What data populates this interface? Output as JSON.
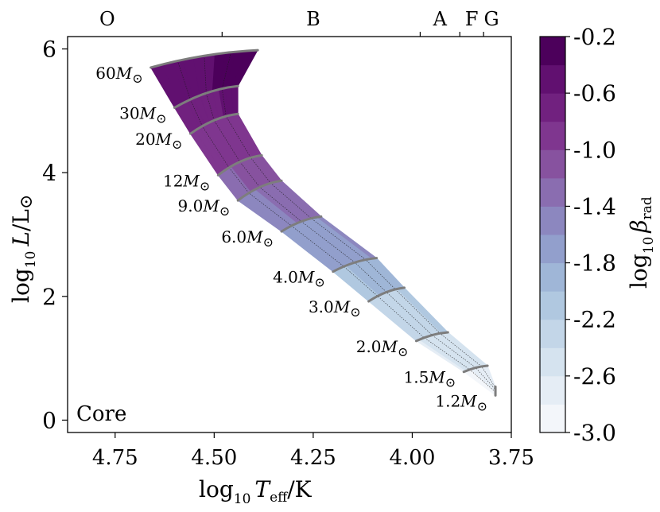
{
  "chart_data": {
    "type": "contour",
    "title": "",
    "panel_label": "Core",
    "xlabel": {
      "main": "log",
      "sub": "10",
      "sym": "T",
      "symsub": "eff",
      "unit": "/K"
    },
    "ylabel": {
      "main": "log",
      "sub": "10",
      "sym": "L",
      "unit": "/L",
      "sun": "⊙"
    },
    "xlim": [
      4.87,
      3.75
    ],
    "ylim": [
      -0.2,
      6.2
    ],
    "x_ticks": [
      4.75,
      4.5,
      4.25,
      4.0,
      3.75
    ],
    "x_tick_labels": [
      "4.75",
      "4.50",
      "4.25",
      "4.00",
      "3.75"
    ],
    "y_ticks": [
      0,
      2,
      4,
      6
    ],
    "y_tick_labels": [
      "0",
      "2",
      "4",
      "6"
    ],
    "spectral_classes": [
      {
        "label": "O",
        "x": 4.77
      },
      {
        "label": "B",
        "x": 4.25
      },
      {
        "label": "A",
        "x": 3.93
      },
      {
        "label": "F",
        "x": 3.85
      },
      {
        "label": "G",
        "x": 3.8
      }
    ],
    "spectral_boundaries": [
      4.48,
      3.98,
      3.88,
      3.82
    ],
    "colorbar": {
      "label": {
        "main": "log",
        "sub": "10",
        "sym": "β",
        "symsub": "rad"
      },
      "min": -3.0,
      "max": -0.2,
      "levels": [
        -3.0,
        -2.8,
        -2.6,
        -2.4,
        -2.2,
        -2.0,
        -1.8,
        -1.6,
        -1.4,
        -1.2,
        -1.0,
        -0.8,
        -0.6,
        -0.4,
        -0.2
      ],
      "tick_values": [
        -3.0,
        -2.6,
        -2.2,
        -1.8,
        -1.4,
        -1.0,
        -0.6,
        -0.2
      ],
      "tick_labels": [
        "-3.0",
        "-2.6",
        "-2.2",
        "-1.8",
        "-1.4",
        "-1.0",
        "-0.6",
        "-0.2"
      ],
      "colors": [
        "#f3f6fa",
        "#e5edf5",
        "#d5e3ef",
        "#c3d6e8",
        "#b0c8e0",
        "#9fb6d7",
        "#929fcc",
        "#8c87bf",
        "#8a6db0",
        "#87529f",
        "#7f368f",
        "#71217f",
        "#611070",
        "#4c005b"
      ]
    },
    "tracks": [
      {
        "mass": "60",
        "x_zams": 4.66,
        "x_end": 4.39,
        "logL": 5.7,
        "rise": 0.28,
        "beta_zams": -0.35,
        "beta_end": -0.22
      },
      {
        "mass": "30",
        "x_zams": 4.6,
        "x_end": 4.44,
        "logL": 5.05,
        "rise": 0.35,
        "beta_zams": -0.63,
        "beta_end": -0.45
      },
      {
        "mass": "20",
        "x_zams": 4.56,
        "x_end": 4.44,
        "logL": 4.63,
        "rise": 0.32,
        "beta_zams": -0.82,
        "beta_end": -0.64
      },
      {
        "mass": "12",
        "x_zams": 4.49,
        "x_end": 4.38,
        "logL": 3.96,
        "rise": 0.32,
        "beta_zams": -1.15,
        "beta_end": -0.97
      },
      {
        "mass": "9.0",
        "x_zams": 4.44,
        "x_end": 4.33,
        "logL": 3.55,
        "rise": 0.32,
        "beta_zams": -1.35,
        "beta_end": -1.17
      },
      {
        "mass": "6.0",
        "x_zams": 4.33,
        "x_end": 4.23,
        "logL": 3.05,
        "rise": 0.24,
        "beta_zams": -1.6,
        "beta_end": -1.43
      },
      {
        "mass": "4.0",
        "x_zams": 4.2,
        "x_end": 4.09,
        "logL": 2.4,
        "rise": 0.22,
        "beta_zams": -1.93,
        "beta_end": -1.75
      },
      {
        "mass": "3.0",
        "x_zams": 4.11,
        "x_end": 4.02,
        "logL": 1.92,
        "rise": 0.22,
        "beta_zams": -2.18,
        "beta_end": -2.0
      },
      {
        "mass": "2.0",
        "x_zams": 3.99,
        "x_end": 3.91,
        "logL": 1.28,
        "rise": 0.14,
        "beta_zams": -2.5,
        "beta_end": -2.35
      },
      {
        "mass": "1.5",
        "x_zams": 3.87,
        "x_end": 3.81,
        "logL": 0.78,
        "rise": 0.1,
        "beta_zams": -2.72,
        "beta_end": -2.58
      },
      {
        "mass": "1.2",
        "x_zams": 3.79,
        "x_end": 3.79,
        "logL": 0.4,
        "rise": 0.14,
        "beta_zams": -2.95,
        "beta_end": -2.85
      }
    ],
    "track_label_unit": "M",
    "track_label_sun": "⊙",
    "tracks_color": "#7d7d7d"
  }
}
